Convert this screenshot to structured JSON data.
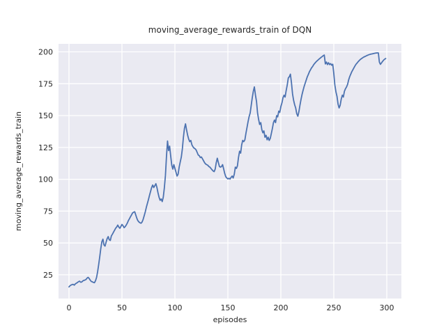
{
  "figure": {
    "background": "#ffffff"
  },
  "chart_data": {
    "type": "line",
    "title": "moving_average_rewards_train of DQN",
    "xlabel": "episodes",
    "ylabel": "moving_average_rewards_train",
    "x_ticks": [
      0,
      50,
      100,
      150,
      200,
      250,
      300
    ],
    "y_ticks": [
      25,
      50,
      75,
      100,
      125,
      150,
      175,
      200
    ],
    "xlim": [
      -9.9,
      313.8
    ],
    "ylim": [
      6.4,
      206.3
    ],
    "grid": true,
    "legend_position": "none",
    "style": {
      "axes_background": "#eaeaf2",
      "grid_color": "#ffffff",
      "line_color": "#4c72b0",
      "text_color": "#262626",
      "line_width": 1.8
    },
    "series": [
      {
        "name": "moving_average_rewards_train",
        "points": [
          [
            0,
            15.5
          ],
          [
            1,
            16.5
          ],
          [
            2,
            17
          ],
          [
            3,
            17.4
          ],
          [
            4,
            17.5
          ],
          [
            5,
            16.9
          ],
          [
            6,
            18
          ],
          [
            7,
            18.4
          ],
          [
            8,
            19
          ],
          [
            9,
            19.6
          ],
          [
            10,
            20
          ],
          [
            11,
            19.2
          ],
          [
            12,
            19.4
          ],
          [
            13,
            20.2
          ],
          [
            14,
            20.6
          ],
          [
            15,
            20.9
          ],
          [
            16,
            21.3
          ],
          [
            17,
            22.4
          ],
          [
            18,
            23
          ],
          [
            19,
            22.2
          ],
          [
            20,
            20.9
          ],
          [
            21,
            19.8
          ],
          [
            22,
            19.5
          ],
          [
            23,
            19
          ],
          [
            24,
            18.8
          ],
          [
            25,
            20.3
          ],
          [
            26,
            23
          ],
          [
            27,
            27.5
          ],
          [
            28,
            33
          ],
          [
            29,
            39
          ],
          [
            30,
            45.5
          ],
          [
            31,
            51
          ],
          [
            32,
            53
          ],
          [
            33,
            48.5
          ],
          [
            34,
            47.5
          ],
          [
            35,
            50.5
          ],
          [
            36,
            53.5
          ],
          [
            37,
            55
          ],
          [
            38,
            52.5
          ],
          [
            39,
            52
          ],
          [
            40,
            55.5
          ],
          [
            41,
            57
          ],
          [
            42,
            58.5
          ],
          [
            43,
            60
          ],
          [
            44,
            61.5
          ],
          [
            45,
            62.5
          ],
          [
            46,
            64
          ],
          [
            47,
            62.5
          ],
          [
            48,
            61.5
          ],
          [
            49,
            63
          ],
          [
            50,
            64.5
          ],
          [
            51,
            63.5
          ],
          [
            52,
            62
          ],
          [
            53,
            62.8
          ],
          [
            54,
            64
          ],
          [
            55,
            65.5
          ],
          [
            56,
            67.5
          ],
          [
            57,
            69
          ],
          [
            58,
            70.5
          ],
          [
            59,
            72
          ],
          [
            60,
            73.5
          ],
          [
            61,
            74.2
          ],
          [
            62,
            74.5
          ],
          [
            63,
            72
          ],
          [
            64,
            69.5
          ],
          [
            65,
            67.5
          ],
          [
            66,
            66.5
          ],
          [
            67,
            65.8
          ],
          [
            68,
            65.5
          ],
          [
            69,
            66.5
          ],
          [
            70,
            68.5
          ],
          [
            71,
            71.5
          ],
          [
            72,
            74.5
          ],
          [
            73,
            78
          ],
          [
            74,
            81
          ],
          [
            75,
            84
          ],
          [
            76,
            87.5
          ],
          [
            77,
            90.5
          ],
          [
            78,
            93.5
          ],
          [
            79,
            95.5
          ],
          [
            80,
            93.5
          ],
          [
            81,
            95
          ],
          [
            82,
            96.5
          ],
          [
            83,
            93.5
          ],
          [
            84,
            89.5
          ],
          [
            85,
            86
          ],
          [
            86,
            83.5
          ],
          [
            87,
            84.5
          ],
          [
            88,
            82.5
          ],
          [
            89,
            86
          ],
          [
            90,
            93
          ],
          [
            91,
            103
          ],
          [
            92,
            118
          ],
          [
            93,
            130
          ],
          [
            94,
            122.5
          ],
          [
            95,
            126
          ],
          [
            96,
            118
          ],
          [
            97,
            111
          ],
          [
            98,
            108
          ],
          [
            99,
            111.5
          ],
          [
            100,
            108.5
          ],
          [
            101,
            105.5
          ],
          [
            102,
            102.5
          ],
          [
            103,
            104
          ],
          [
            104,
            109.5
          ],
          [
            105,
            113.5
          ],
          [
            106,
            117.5
          ],
          [
            107,
            124
          ],
          [
            108,
            133
          ],
          [
            109,
            140
          ],
          [
            110,
            143.5
          ],
          [
            111,
            138.5
          ],
          [
            112,
            134.5
          ],
          [
            113,
            131.5
          ],
          [
            114,
            129.5
          ],
          [
            115,
            130.5
          ],
          [
            116,
            127
          ],
          [
            117,
            125.5
          ],
          [
            118,
            124.5
          ],
          [
            119,
            124
          ],
          [
            120,
            123
          ],
          [
            121,
            121
          ],
          [
            122,
            119
          ],
          [
            123,
            118.5
          ],
          [
            124,
            117
          ],
          [
            125,
            117.5
          ],
          [
            126,
            116
          ],
          [
            127,
            114.5
          ],
          [
            128,
            113
          ],
          [
            129,
            112
          ],
          [
            130,
            111.5
          ],
          [
            131,
            111
          ],
          [
            132,
            110
          ],
          [
            133,
            109.5
          ],
          [
            134,
            108.5
          ],
          [
            135,
            107.5
          ],
          [
            136,
            106.5
          ],
          [
            137,
            106
          ],
          [
            138,
            108
          ],
          [
            139,
            113
          ],
          [
            140,
            116.5
          ],
          [
            141,
            113
          ],
          [
            142,
            110
          ],
          [
            143,
            109.5
          ],
          [
            144,
            110
          ],
          [
            145,
            111.5
          ],
          [
            146,
            108
          ],
          [
            147,
            104.5
          ],
          [
            148,
            102
          ],
          [
            149,
            101
          ],
          [
            150,
            100.3
          ],
          [
            151,
            100.8
          ],
          [
            152,
            100.2
          ],
          [
            153,
            101.5
          ],
          [
            154,
            102.5
          ],
          [
            155,
            101
          ],
          [
            156,
            104
          ],
          [
            157,
            109.5
          ],
          [
            158,
            108.5
          ],
          [
            159,
            110.5
          ],
          [
            160,
            117
          ],
          [
            161,
            122
          ],
          [
            162,
            120.5
          ],
          [
            163,
            127
          ],
          [
            164,
            130.5
          ],
          [
            165,
            129.5
          ],
          [
            166,
            131
          ],
          [
            167,
            136
          ],
          [
            168,
            140.5
          ],
          [
            169,
            145
          ],
          [
            170,
            149
          ],
          [
            171,
            152
          ],
          [
            172,
            158
          ],
          [
            173,
            164
          ],
          [
            174,
            169
          ],
          [
            175,
            172.5
          ],
          [
            176,
            166
          ],
          [
            177,
            161
          ],
          [
            178,
            152
          ],
          [
            179,
            147
          ],
          [
            180,
            143
          ],
          [
            181,
            144.5
          ],
          [
            182,
            139
          ],
          [
            183,
            136.5
          ],
          [
            184,
            138
          ],
          [
            185,
            133
          ],
          [
            186,
            134.5
          ],
          [
            187,
            131
          ],
          [
            188,
            133
          ],
          [
            189,
            130.5
          ],
          [
            190,
            132
          ],
          [
            191,
            136
          ],
          [
            192,
            140
          ],
          [
            193,
            144.5
          ],
          [
            194,
            146.5
          ],
          [
            195,
            144.5
          ],
          [
            196,
            150
          ],
          [
            197,
            149
          ],
          [
            198,
            153.5
          ],
          [
            199,
            152.5
          ],
          [
            200,
            157
          ],
          [
            201,
            160
          ],
          [
            202,
            164
          ],
          [
            203,
            166
          ],
          [
            204,
            164.5
          ],
          [
            205,
            169.5
          ],
          [
            206,
            174
          ],
          [
            207,
            179.5
          ],
          [
            208,
            180.5
          ],
          [
            209,
            182.5
          ],
          [
            210,
            176
          ],
          [
            211,
            167
          ],
          [
            212,
            162
          ],
          [
            213,
            158.5
          ],
          [
            214,
            156
          ],
          [
            215,
            151.5
          ],
          [
            216,
            149.5
          ],
          [
            217,
            153
          ],
          [
            218,
            158
          ],
          [
            219,
            162.5
          ],
          [
            220,
            166.5
          ],
          [
            221,
            170
          ],
          [
            222,
            173
          ],
          [
            223,
            175.5
          ],
          [
            224,
            178
          ],
          [
            225,
            180.5
          ],
          [
            226,
            182.5
          ],
          [
            227,
            184.5
          ],
          [
            228,
            186
          ],
          [
            229,
            187.5
          ],
          [
            230,
            188.5
          ],
          [
            231,
            190
          ],
          [
            232,
            191
          ],
          [
            233,
            192
          ],
          [
            234,
            192.8
          ],
          [
            235,
            193.5
          ],
          [
            236,
            194.3
          ],
          [
            237,
            195
          ],
          [
            238,
            195.7
          ],
          [
            239,
            196.3
          ],
          [
            240,
            197
          ],
          [
            241,
            197.5
          ],
          [
            242,
            190.5
          ],
          [
            243,
            192
          ],
          [
            244,
            190
          ],
          [
            245,
            191.5
          ],
          [
            246,
            190
          ],
          [
            247,
            190.8
          ],
          [
            248,
            189.5
          ],
          [
            249,
            190.3
          ],
          [
            250,
            183
          ],
          [
            251,
            174
          ],
          [
            252,
            168.5
          ],
          [
            253,
            165
          ],
          [
            254,
            159
          ],
          [
            255,
            156
          ],
          [
            256,
            158
          ],
          [
            257,
            163
          ],
          [
            258,
            166
          ],
          [
            259,
            164.5
          ],
          [
            260,
            169
          ],
          [
            261,
            171
          ],
          [
            262,
            172.5
          ],
          [
            263,
            174.5
          ],
          [
            264,
            178
          ],
          [
            265,
            180.5
          ],
          [
            266,
            182.5
          ],
          [
            267,
            184.5
          ],
          [
            268,
            186
          ],
          [
            269,
            187.5
          ],
          [
            270,
            189
          ],
          [
            271,
            190.3
          ],
          [
            272,
            191.3
          ],
          [
            273,
            192.3
          ],
          [
            274,
            193.2
          ],
          [
            275,
            194
          ],
          [
            276,
            194.6
          ],
          [
            277,
            195.2
          ],
          [
            278,
            195.8
          ],
          [
            279,
            196.2
          ],
          [
            280,
            196.6
          ],
          [
            281,
            197
          ],
          [
            282,
            197.4
          ],
          [
            283,
            197.7
          ],
          [
            284,
            198
          ],
          [
            285,
            198.2
          ],
          [
            286,
            198.4
          ],
          [
            287,
            198.6
          ],
          [
            288,
            198.8
          ],
          [
            289,
            199
          ],
          [
            290,
            199.1
          ],
          [
            291,
            199.2
          ],
          [
            292,
            199.2
          ],
          [
            293,
            192
          ],
          [
            294,
            190.2
          ],
          [
            295,
            191.3
          ],
          [
            296,
            192.5
          ],
          [
            297,
            193.5
          ],
          [
            298,
            194.3
          ],
          [
            299,
            194.8
          ]
        ]
      }
    ]
  }
}
